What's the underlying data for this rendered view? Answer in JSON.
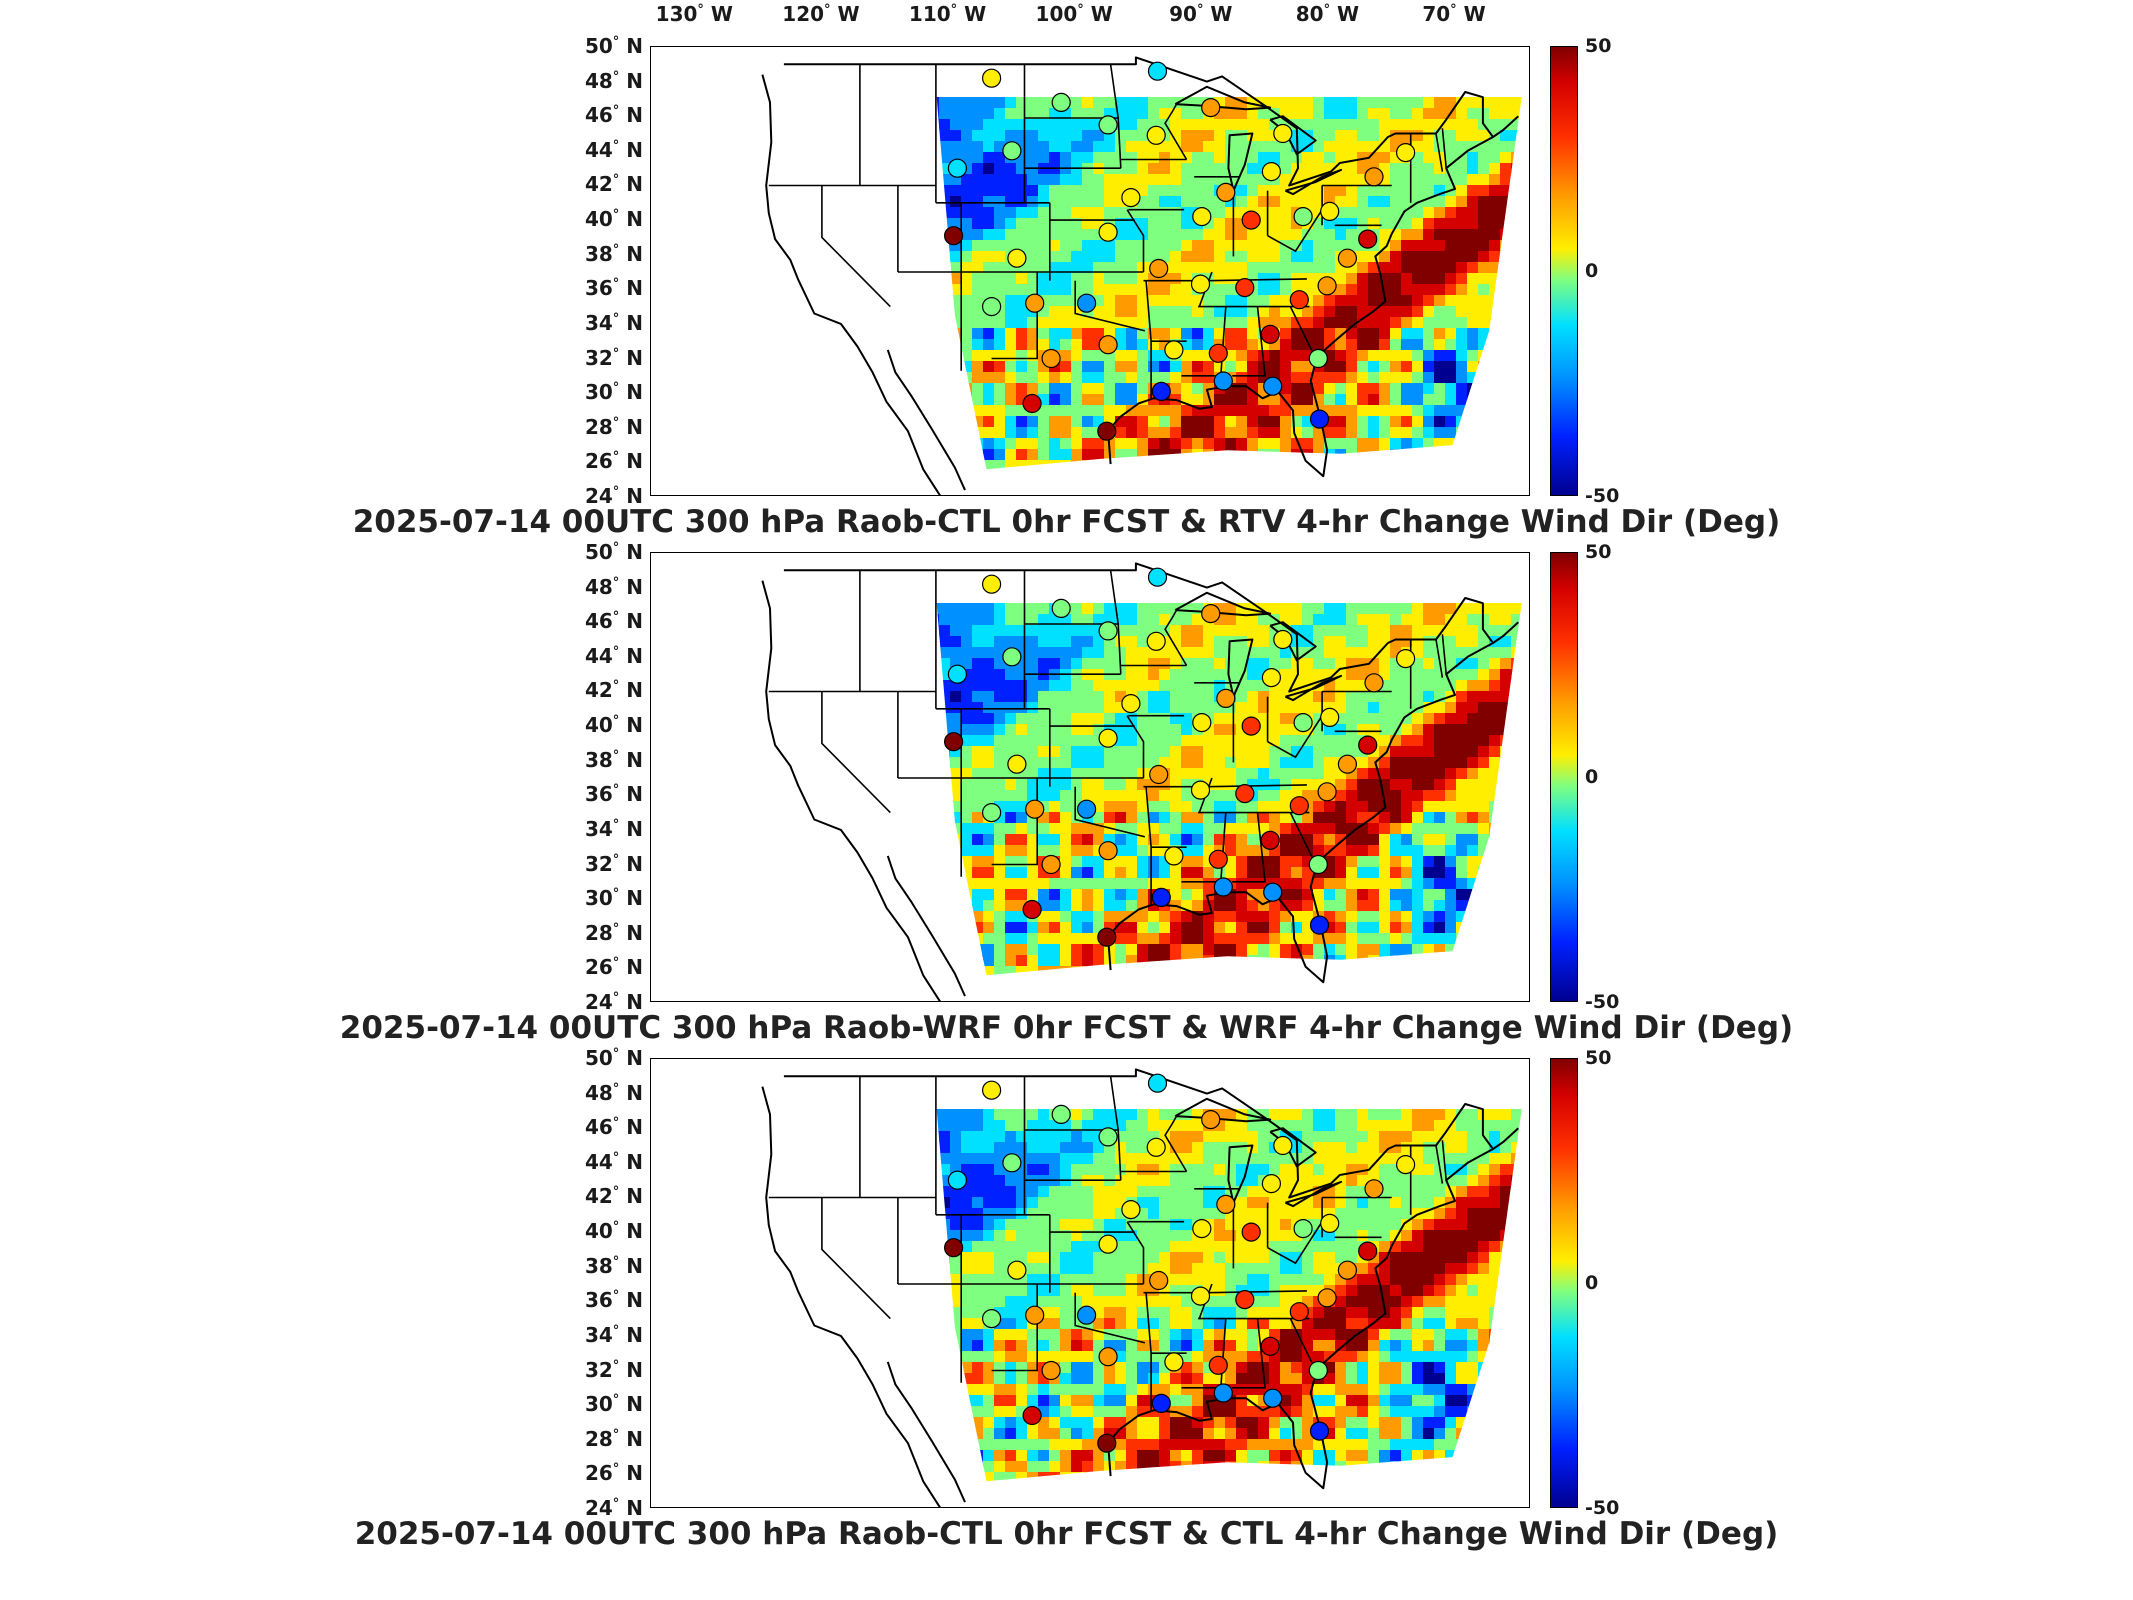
{
  "lon_ticks": [
    {
      "deg": "130",
      "dir": "W"
    },
    {
      "deg": "120",
      "dir": "W"
    },
    {
      "deg": "110",
      "dir": "W"
    },
    {
      "deg": "100",
      "dir": "W"
    },
    {
      "deg": "90",
      "dir": "W"
    },
    {
      "deg": "80",
      "dir": "W"
    },
    {
      "deg": "70",
      "dir": "W"
    }
  ],
  "lat_ticks": [
    {
      "deg": "50",
      "dir": "N"
    },
    {
      "deg": "48",
      "dir": "N"
    },
    {
      "deg": "46",
      "dir": "N"
    },
    {
      "deg": "44",
      "dir": "N"
    },
    {
      "deg": "42",
      "dir": "N"
    },
    {
      "deg": "40",
      "dir": "N"
    },
    {
      "deg": "38",
      "dir": "N"
    },
    {
      "deg": "36",
      "dir": "N"
    },
    {
      "deg": "34",
      "dir": "N"
    },
    {
      "deg": "32",
      "dir": "N"
    },
    {
      "deg": "30",
      "dir": "N"
    },
    {
      "deg": "28",
      "dir": "N"
    },
    {
      "deg": "26",
      "dir": "N"
    },
    {
      "deg": "24",
      "dir": "N"
    }
  ],
  "degree_symbol": "°",
  "colorbar": {
    "max": "50",
    "mid": "0",
    "min": "-50",
    "colors": [
      "#800000",
      "#d40000",
      "#ff3000",
      "#ff9a00",
      "#ffee00",
      "#7fff80",
      "#00e0ff",
      "#0090ff",
      "#0020ff",
      "#000090"
    ]
  },
  "panels": [
    {
      "title": "2025-07-14 00UTC 300 hPa Raob-CTL 0hr FCST & RTV 4-hr Change Wind Dir (Deg)"
    },
    {
      "title": "2025-07-14 00UTC 300 hPa Raob-WRF 0hr FCST & WRF 4-hr Change Wind Dir (Deg)"
    },
    {
      "title": "2025-07-14 00UTC 300 hPa Raob-CTL 0hr FCST & CTL 4-hr Change Wind Dir (Deg)"
    }
  ],
  "stations": [
    {
      "lon": -106.6,
      "lat": 48.2,
      "value": 5
    },
    {
      "lon": -101.1,
      "lat": 46.8,
      "value": -10
    },
    {
      "lon": -97.4,
      "lat": 45.5,
      "value": -5
    },
    {
      "lon": -93.5,
      "lat": 48.6,
      "value": -15
    },
    {
      "lon": -93.6,
      "lat": 44.9,
      "value": 10
    },
    {
      "lon": -89.3,
      "lat": 46.5,
      "value": 20
    },
    {
      "lon": -83.6,
      "lat": 45.0,
      "value": 10
    },
    {
      "lon": -84.5,
      "lat": 42.8,
      "value": 5
    },
    {
      "lon": -88.1,
      "lat": 41.6,
      "value": 15
    },
    {
      "lon": -90.0,
      "lat": 40.2,
      "value": 5
    },
    {
      "lon": -86.1,
      "lat": 40.0,
      "value": 25
    },
    {
      "lon": -82.0,
      "lat": 40.2,
      "value": -10
    },
    {
      "lon": -79.9,
      "lat": 40.5,
      "value": 5
    },
    {
      "lon": -76.4,
      "lat": 42.5,
      "value": 15
    },
    {
      "lon": -73.9,
      "lat": 43.9,
      "value": 5
    },
    {
      "lon": -109.3,
      "lat": 43.0,
      "value": -15
    },
    {
      "lon": -105.0,
      "lat": 44.0,
      "value": -10
    },
    {
      "lon": -109.6,
      "lat": 39.1,
      "value": 45
    },
    {
      "lon": -104.6,
      "lat": 37.8,
      "value": 10
    },
    {
      "lon": -95.6,
      "lat": 41.3,
      "value": 5
    },
    {
      "lon": -97.4,
      "lat": 39.3,
      "value": 5
    },
    {
      "lon": -93.4,
      "lat": 37.2,
      "value": 15
    },
    {
      "lon": -90.1,
      "lat": 36.3,
      "value": 10
    },
    {
      "lon": -86.6,
      "lat": 36.1,
      "value": 25
    },
    {
      "lon": -82.3,
      "lat": 35.4,
      "value": 30
    },
    {
      "lon": -80.1,
      "lat": 36.2,
      "value": 20
    },
    {
      "lon": -78.5,
      "lat": 37.8,
      "value": 15
    },
    {
      "lon": -76.9,
      "lat": 38.9,
      "value": 35
    },
    {
      "lon": -106.6,
      "lat": 35.0,
      "value": -5
    },
    {
      "lon": -103.2,
      "lat": 35.2,
      "value": 15
    },
    {
      "lon": -99.1,
      "lat": 35.2,
      "value": -25
    },
    {
      "lon": -97.4,
      "lat": 32.8,
      "value": 20
    },
    {
      "lon": -101.9,
      "lat": 32.0,
      "value": 20
    },
    {
      "lon": -92.2,
      "lat": 32.5,
      "value": 10
    },
    {
      "lon": -88.7,
      "lat": 32.3,
      "value": 30
    },
    {
      "lon": -84.6,
      "lat": 33.4,
      "value": 40
    },
    {
      "lon": -80.8,
      "lat": 32.0,
      "value": -5
    },
    {
      "lon": -103.4,
      "lat": 29.4,
      "value": 40
    },
    {
      "lon": -97.5,
      "lat": 27.8,
      "value": 50
    },
    {
      "lon": -93.2,
      "lat": 30.1,
      "value": -40
    },
    {
      "lon": -88.3,
      "lat": 30.7,
      "value": -25
    },
    {
      "lon": -84.4,
      "lat": 30.4,
      "value": -30
    },
    {
      "lon": -80.7,
      "lat": 28.5,
      "value": -35
    }
  ]
}
